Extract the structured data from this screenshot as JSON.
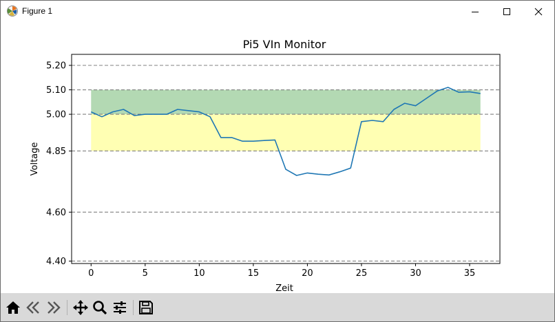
{
  "window": {
    "title": "Figure 1",
    "controls": [
      "minimize",
      "maximize",
      "close"
    ]
  },
  "chart_data": {
    "type": "line",
    "title": "Pi5 VIn Monitor",
    "xlabel": "Zeit",
    "ylabel": "Voltage",
    "xlim": [
      -1.8,
      37.8
    ],
    "ylim": [
      4.39,
      5.245
    ],
    "xticks": [
      0,
      5,
      10,
      15,
      20,
      25,
      30,
      35
    ],
    "xtick_labels": [
      "0",
      "5",
      "10",
      "15",
      "20",
      "25",
      "30",
      "35"
    ],
    "yticks": [
      4.4,
      4.6,
      4.85,
      5.0,
      5.1,
      5.2
    ],
    "ytick_labels": [
      "4.40",
      "4.60",
      "4.85",
      "5.00",
      "5.10",
      "5.20"
    ],
    "hlines": [
      4.4,
      4.6,
      4.85,
      5.0,
      5.1,
      5.2
    ],
    "bands": [
      {
        "ymin": 5.0,
        "ymax": 5.1,
        "xmin": 0,
        "xmax": 36,
        "color": "#b3d9b3"
      },
      {
        "ymin": 4.85,
        "ymax": 5.0,
        "xmin": 0,
        "xmax": 36,
        "color": "#ffffb3"
      }
    ],
    "series": [
      {
        "color": "#1f77b4",
        "x": [
          0,
          1,
          2,
          3,
          4,
          5,
          6,
          7,
          8,
          9,
          10,
          11,
          12,
          13,
          14,
          15,
          16,
          17,
          18,
          19,
          20,
          21,
          22,
          23,
          24,
          25,
          26,
          27,
          28,
          29,
          30,
          31,
          32,
          33,
          34,
          35,
          36
        ],
        "values": [
          5.01,
          4.99,
          5.01,
          5.02,
          4.995,
          5.0,
          5.0,
          5.0,
          5.02,
          5.015,
          5.01,
          4.99,
          4.905,
          4.905,
          4.89,
          4.89,
          4.893,
          4.895,
          4.775,
          4.75,
          4.76,
          4.755,
          4.752,
          4.765,
          4.78,
          4.97,
          4.975,
          4.97,
          5.02,
          5.045,
          5.035,
          5.065,
          5.095,
          5.11,
          5.09,
          5.092,
          5.085
        ]
      }
    ]
  },
  "toolbar": {
    "buttons": [
      "home-icon",
      "back-icon",
      "forward-icon",
      "pan-icon",
      "zoom-icon",
      "configure-icon",
      "save-icon"
    ]
  },
  "colors": {
    "line": "#1f77b4",
    "grid": "#808080",
    "toolbar_bg": "#d9d9d9"
  }
}
